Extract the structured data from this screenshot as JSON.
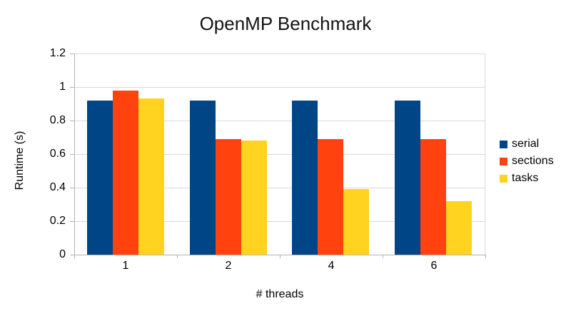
{
  "chart_data": {
    "type": "bar",
    "title": "OpenMP Benchmark",
    "xlabel": "# threads",
    "ylabel": "Runtime (s)",
    "categories": [
      "1",
      "2",
      "4",
      "6"
    ],
    "series": [
      {
        "name": "serial",
        "color": "#004586",
        "values": [
          0.92,
          0.92,
          0.92,
          0.92
        ]
      },
      {
        "name": "sections",
        "color": "#ff420e",
        "values": [
          0.98,
          0.69,
          0.69,
          0.69
        ]
      },
      {
        "name": "tasks",
        "color": "#ffd320",
        "values": [
          0.93,
          0.68,
          0.39,
          0.32
        ]
      }
    ],
    "ylim": [
      0,
      1.2
    ],
    "yticks": [
      0,
      0.2,
      0.4,
      0.6,
      0.8,
      1,
      1.2
    ],
    "ytick_labels": [
      "0",
      "0.2",
      "0.4",
      "0.6",
      "0.8",
      "1",
      "1.2"
    ],
    "grid": true,
    "legend_position": "right",
    "colors": {
      "background": "#ffffff",
      "gridline": "#d9d9d9",
      "axis": "#b3b3b3",
      "text": "#000000"
    }
  }
}
